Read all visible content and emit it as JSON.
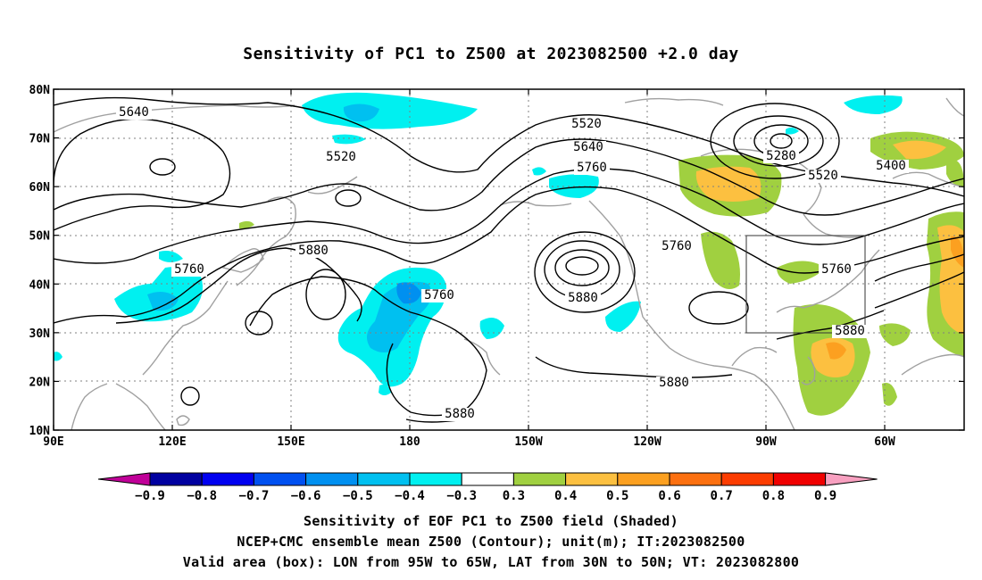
{
  "title": "Sensitivity of PC1 to Z500 at 2023082500 +2.0 day",
  "map": {
    "lon_ticks": [
      "90E",
      "120E",
      "150E",
      "180",
      "150W",
      "120W",
      "90W",
      "60W"
    ],
    "lat_ticks": [
      "80N",
      "70N",
      "60N",
      "50N",
      "40N",
      "30N",
      "20N",
      "10N"
    ],
    "lon_range": [
      90,
      320
    ],
    "lat_range": [
      10,
      80
    ],
    "box": {
      "lon": [
        265,
        295
      ],
      "lat": [
        30,
        50
      ]
    },
    "contour_labels": [
      "5640",
      "5520",
      "5520",
      "5640",
      "5760",
      "5280",
      "5400",
      "5520",
      "5880",
      "5760",
      "5880",
      "5760",
      "5760",
      "5760",
      "5880",
      "5880",
      "5880"
    ],
    "colors": {
      "contour": "#000000",
      "coast": "#a0a0a0",
      "grid": "#808080"
    }
  },
  "colorbar": {
    "labels": [
      "-0.9",
      "-0.8",
      "-0.7",
      "-0.6",
      "-0.5",
      "-0.4",
      "-0.3",
      "0.3",
      "0.4",
      "0.5",
      "0.6",
      "0.7",
      "0.8",
      "0.9"
    ],
    "colors": [
      "#c00098",
      "#0000a0",
      "#0000f0",
      "#0050f0",
      "#0090f0",
      "#00c0f0",
      "#00f0f0",
      "#ffffff",
      "#a0d040",
      "#fcc040",
      "#fca020",
      "#fc7010",
      "#fc3c00",
      "#f00000",
      "#f8a0c0"
    ]
  },
  "captions": {
    "line1": "Sensitivity of EOF PC1 to Z500 field (Shaded)",
    "line2": "NCEP+CMC ensemble mean Z500 (Contour); unit(m); IT:2023082500",
    "line3": "Valid area (box): LON from 95W to 65W, LAT from 30N to 50N; VT: 2023082800"
  }
}
